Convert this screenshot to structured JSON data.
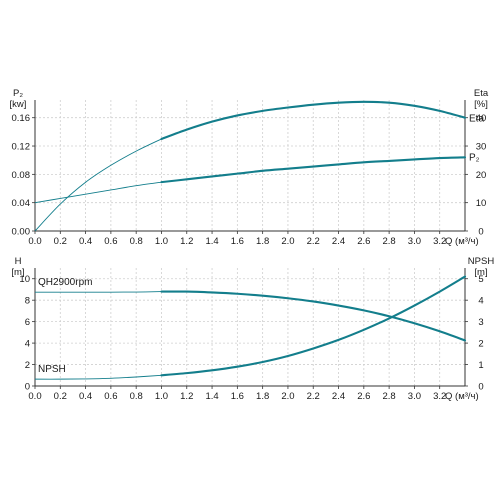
{
  "chart_data": [
    {
      "type": "line",
      "x_axis": {
        "label": "Q (м³/ч)",
        "ticks": [
          "0.0",
          "0.2",
          "0.4",
          "0.6",
          "0.8",
          "1.0",
          "1.2",
          "1.4",
          "1.6",
          "1.8",
          "2.0",
          "2.2",
          "2.4",
          "2.6",
          "2.8",
          "3.0",
          "3.2"
        ],
        "range": [
          0,
          3.4
        ]
      },
      "left_axis": {
        "label": "P₂",
        "unit": "[kw]",
        "ticks": [
          "0.00",
          "0.04",
          "0.08",
          "0.12",
          "0.16"
        ],
        "range": [
          0,
          0.185
        ]
      },
      "right_axis": {
        "label": "Eta",
        "unit": "[%]",
        "ticks": [
          "0",
          "10",
          "20",
          "30",
          "40"
        ],
        "range": [
          0,
          46.25
        ]
      },
      "series": [
        {
          "name": "Eta",
          "axis": "right",
          "color": "#137e8c",
          "thin_until_x": 1.0,
          "x": [
            0,
            0.2,
            0.4,
            0.6,
            0.8,
            1.0,
            1.2,
            1.4,
            1.6,
            1.8,
            2.0,
            2.2,
            2.4,
            2.6,
            2.8,
            3.0,
            3.2,
            3.4
          ],
          "y": [
            0,
            9.5,
            17.2,
            23.2,
            28.2,
            32.5,
            35.8,
            38.6,
            40.8,
            42.4,
            43.6,
            44.6,
            45.3,
            45.6,
            45.3,
            44.2,
            42.4,
            40.0
          ]
        },
        {
          "name": "P₂",
          "axis": "left",
          "color": "#137e8c",
          "thin_until_x": 1.0,
          "x": [
            0,
            0.2,
            0.4,
            0.6,
            0.8,
            1.0,
            1.2,
            1.4,
            1.6,
            1.8,
            2.0,
            2.2,
            2.4,
            2.6,
            2.8,
            3.0,
            3.2,
            3.4
          ],
          "y": [
            0.04,
            0.046,
            0.052,
            0.058,
            0.064,
            0.069,
            0.073,
            0.077,
            0.081,
            0.085,
            0.088,
            0.091,
            0.094,
            0.097,
            0.099,
            0.101,
            0.103,
            0.104
          ]
        }
      ]
    },
    {
      "type": "line",
      "x_axis": {
        "label": "Q (м³/ч)",
        "ticks": [
          "0.0",
          "0.2",
          "0.4",
          "0.6",
          "0.8",
          "1.0",
          "1.2",
          "1.4",
          "1.6",
          "1.8",
          "2.0",
          "2.2",
          "2.4",
          "2.6",
          "2.8",
          "3.0",
          "3.2"
        ],
        "range": [
          0,
          3.4
        ]
      },
      "left_axis": {
        "label": "H",
        "unit": "[m]",
        "ticks": [
          "0",
          "2",
          "4",
          "6",
          "8",
          "10"
        ],
        "range": [
          0,
          11
        ]
      },
      "right_axis": {
        "label": "NPSH",
        "unit": "[m]",
        "ticks": [
          "0",
          "1",
          "2",
          "3",
          "4",
          "5"
        ],
        "range": [
          0,
          5.5
        ]
      },
      "series": [
        {
          "name": "QH2900rpm",
          "axis": "left",
          "color": "#137e8c",
          "thin_until_x": 1.0,
          "x": [
            0,
            0.2,
            0.4,
            0.6,
            0.8,
            1.0,
            1.2,
            1.4,
            1.6,
            1.8,
            2.0,
            2.2,
            2.4,
            2.6,
            2.8,
            3.0,
            3.2,
            3.4
          ],
          "y": [
            8.75,
            8.75,
            8.75,
            8.75,
            8.76,
            8.8,
            8.8,
            8.72,
            8.6,
            8.42,
            8.18,
            7.88,
            7.5,
            7.05,
            6.5,
            5.85,
            5.1,
            4.25
          ]
        },
        {
          "name": "NPSH",
          "axis": "right",
          "color": "#137e8c",
          "thin_until_x": 1.0,
          "x": [
            0,
            0.2,
            0.4,
            0.6,
            0.8,
            1.0,
            1.2,
            1.4,
            1.6,
            1.8,
            2.0,
            2.2,
            2.4,
            2.6,
            2.8,
            3.0,
            3.2,
            3.4
          ],
          "y": [
            0.32,
            0.32,
            0.33,
            0.36,
            0.42,
            0.5,
            0.6,
            0.73,
            0.9,
            1.12,
            1.4,
            1.75,
            2.15,
            2.62,
            3.15,
            3.75,
            4.4,
            5.1
          ]
        }
      ]
    }
  ]
}
